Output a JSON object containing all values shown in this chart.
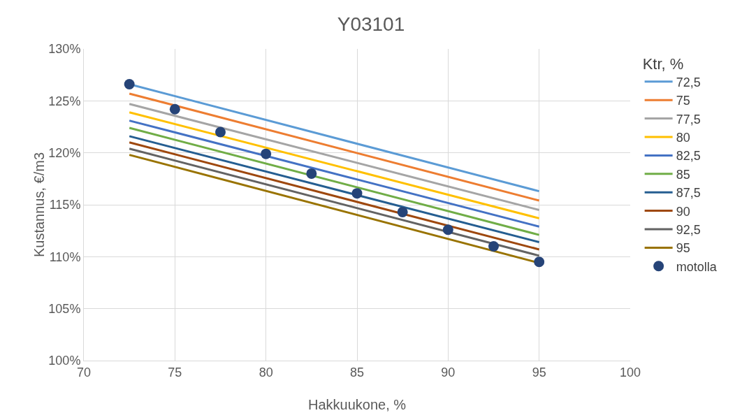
{
  "chart_data": {
    "type": "line",
    "title": "Y03101",
    "xlabel": "Hakkuukone, %",
    "ylabel": "Kustannus, €/m3",
    "legend_title": "Ktr, %",
    "legend": "right",
    "grid": true,
    "xlim": [
      70,
      100
    ],
    "xticks": [
      70,
      75,
      80,
      85,
      90,
      95,
      100
    ],
    "ylim": [
      100,
      130
    ],
    "yticks": [
      {
        "value": 100,
        "label": "100%"
      },
      {
        "value": 105,
        "label": "105%"
      },
      {
        "value": 110,
        "label": "110%"
      },
      {
        "value": 115,
        "label": "115%"
      },
      {
        "value": 120,
        "label": "120%"
      },
      {
        "value": 125,
        "label": "125%"
      },
      {
        "value": 130,
        "label": "130%"
      }
    ],
    "series": [
      {
        "name": "72,5",
        "color": "#5b9bd5",
        "x": [
          72.5,
          95
        ],
        "values": [
          126.6,
          116.3
        ]
      },
      {
        "name": "75",
        "color": "#ed7d31",
        "x": [
          72.5,
          95
        ],
        "values": [
          125.7,
          115.4
        ]
      },
      {
        "name": "77,5",
        "color": "#a5a5a5",
        "x": [
          72.5,
          95
        ],
        "values": [
          124.7,
          114.5
        ]
      },
      {
        "name": "80",
        "color": "#ffc000",
        "x": [
          72.5,
          95
        ],
        "values": [
          123.9,
          113.7
        ]
      },
      {
        "name": "82,5",
        "color": "#4472c4",
        "x": [
          72.5,
          95
        ],
        "values": [
          123.1,
          112.9
        ]
      },
      {
        "name": "85",
        "color": "#70ad47",
        "x": [
          72.5,
          95
        ],
        "values": [
          122.4,
          112.1
        ]
      },
      {
        "name": "87,5",
        "color": "#255e91",
        "x": [
          72.5,
          95
        ],
        "values": [
          121.6,
          111.4
        ]
      },
      {
        "name": "90",
        "color": "#9e480e",
        "x": [
          72.5,
          95
        ],
        "values": [
          121.0,
          110.7
        ]
      },
      {
        "name": "92,5",
        "color": "#636363",
        "x": [
          72.5,
          95
        ],
        "values": [
          120.4,
          110.1
        ]
      },
      {
        "name": "95",
        "color": "#997300",
        "x": [
          72.5,
          95
        ],
        "values": [
          119.8,
          109.4
        ]
      },
      {
        "name": "motolla",
        "color": "#264478",
        "type": "scatter",
        "marker": "circle",
        "x": [
          72.5,
          75,
          77.5,
          80,
          82.5,
          85,
          87.5,
          90,
          92.5,
          95
        ],
        "values": [
          126.6,
          124.2,
          122.0,
          119.9,
          118.0,
          116.1,
          114.3,
          112.6,
          111.0,
          109.5
        ]
      }
    ]
  }
}
